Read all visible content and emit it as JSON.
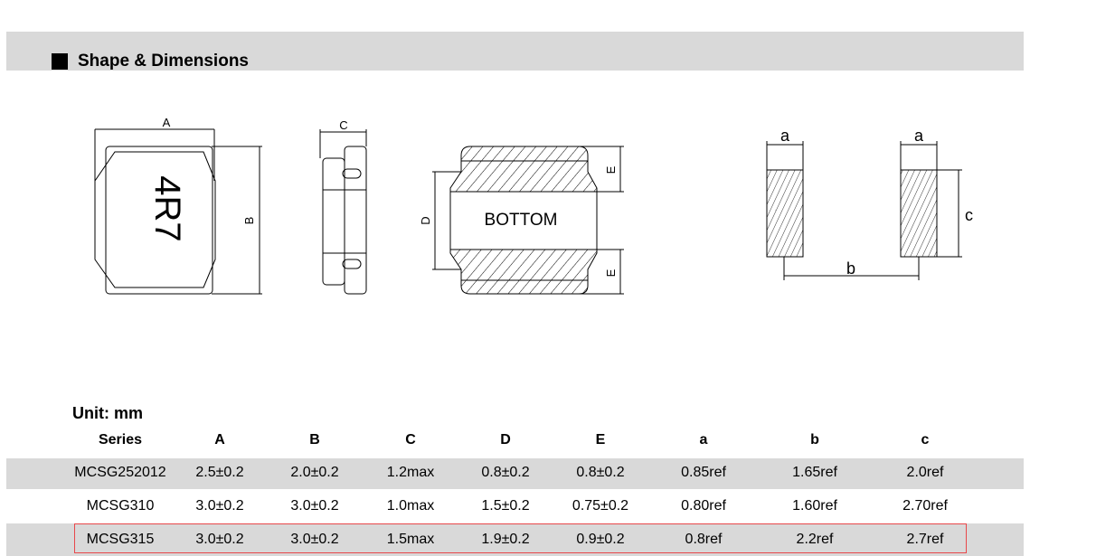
{
  "section": {
    "title": "Shape & Dimensions"
  },
  "drawing": {
    "marking": "4R7",
    "bottom_label": "BOTTOM",
    "dims": [
      "A",
      "B",
      "C",
      "D",
      "E",
      "a",
      "b",
      "c"
    ]
  },
  "table": {
    "unit": "Unit: mm",
    "headers": [
      "Series",
      "A",
      "B",
      "C",
      "D",
      "E",
      "a",
      "b",
      "c"
    ],
    "rows": [
      [
        "MCSG252012",
        "2.5±0.2",
        "2.0±0.2",
        "1.2max",
        "0.8±0.2",
        "0.8±0.2",
        "0.85ref",
        "1.65ref",
        "2.0ref"
      ],
      [
        "MCSG310",
        "3.0±0.2",
        "3.0±0.2",
        "1.0max",
        "1.5±0.2",
        "0.75±0.2",
        "0.80ref",
        "1.60ref",
        "2.70ref"
      ],
      [
        "MCSG315",
        "3.0±0.2",
        "3.0±0.2",
        "1.5max",
        "1.9±0.2",
        "0.9±0.2",
        "0.8ref",
        "2.2ref",
        "2.7ref"
      ]
    ],
    "highlighted_row": 2,
    "highlight_color": "#e8474a",
    "stripe_color": "#d9d9d9"
  }
}
